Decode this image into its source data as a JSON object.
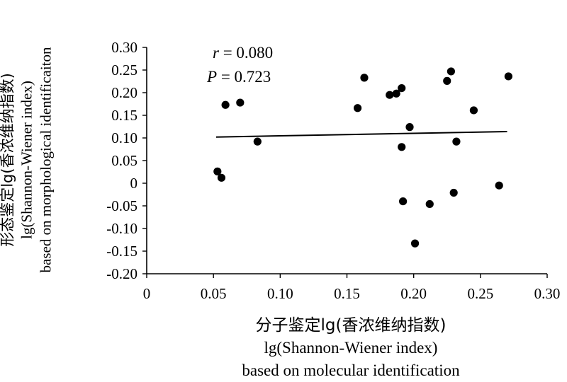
{
  "chart_data": {
    "type": "scatter",
    "xlabel": [
      "分子鉴定lg(香浓维纳指数)",
      "lg(Shannon-Wiener index)",
      "based on molecular identification"
    ],
    "ylabel": [
      "形态鉴定lg(香浓维纳指数)",
      "lg(Shannon-Wiener index)",
      "based on morphological identificaiton"
    ],
    "xlim": [
      0,
      0.3
    ],
    "ylim": [
      -0.2,
      0.3
    ],
    "x_ticks": [
      "0",
      "0.05",
      "0.10",
      "0.15",
      "0.20",
      "0.25",
      "0.30"
    ],
    "y_ticks": [
      "0.30",
      "0.25",
      "0.20",
      "0.15",
      "0.10",
      "0.05",
      "0",
      "-0.05",
      "-0.10",
      "-0.15",
      "-0.20"
    ],
    "annotations": {
      "r_label": "r",
      "r_value": " = 0.080",
      "p_label": "P",
      "p_value": " = 0.723"
    },
    "trendline": {
      "x": [
        0.052,
        0.27
      ],
      "y": [
        0.102,
        0.114
      ]
    },
    "points": [
      {
        "x": 0.053,
        "y": 0.026
      },
      {
        "x": 0.056,
        "y": 0.012
      },
      {
        "x": 0.059,
        "y": 0.173
      },
      {
        "x": 0.07,
        "y": 0.178
      },
      {
        "x": 0.083,
        "y": 0.092
      },
      {
        "x": 0.158,
        "y": 0.166
      },
      {
        "x": 0.163,
        "y": 0.233
      },
      {
        "x": 0.182,
        "y": 0.195
      },
      {
        "x": 0.187,
        "y": 0.198
      },
      {
        "x": 0.191,
        "y": 0.21
      },
      {
        "x": 0.191,
        "y": 0.08
      },
      {
        "x": 0.192,
        "y": -0.04
      },
      {
        "x": 0.197,
        "y": 0.124
      },
      {
        "x": 0.201,
        "y": -0.133
      },
      {
        "x": 0.212,
        "y": -0.046
      },
      {
        "x": 0.225,
        "y": 0.226
      },
      {
        "x": 0.228,
        "y": 0.247
      },
      {
        "x": 0.23,
        "y": -0.021
      },
      {
        "x": 0.232,
        "y": 0.092
      },
      {
        "x": 0.245,
        "y": 0.161
      },
      {
        "x": 0.264,
        "y": -0.005
      },
      {
        "x": 0.271,
        "y": 0.236
      }
    ]
  }
}
